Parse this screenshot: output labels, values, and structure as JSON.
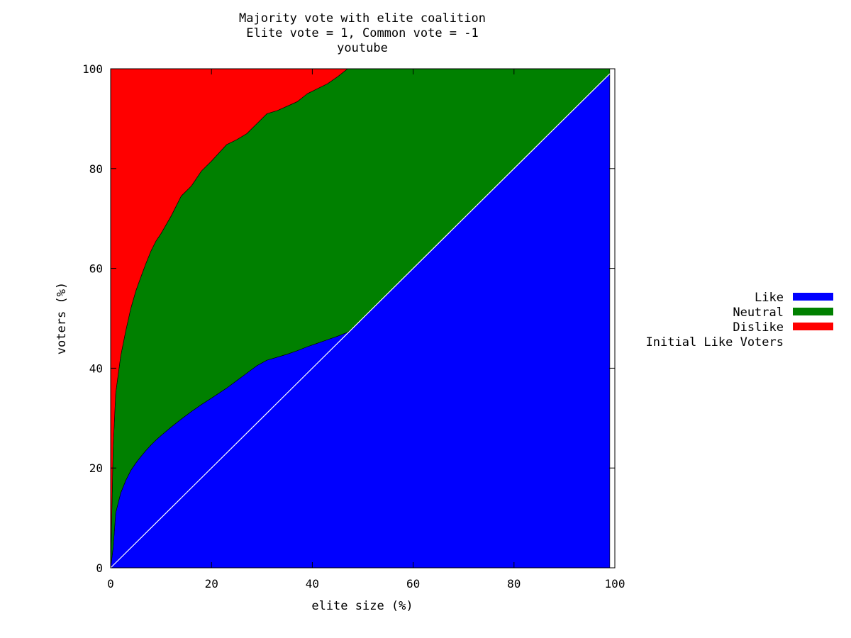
{
  "chart_data": {
    "type": "area",
    "title": "Majority vote with elite coalition",
    "subtitle": "Elite vote = 1, Common vote = -1",
    "subtitle2": "youtube",
    "xlabel": "elite size (%)",
    "ylabel": "voters (%)",
    "xlim": [
      0,
      100
    ],
    "ylim": [
      0,
      100
    ],
    "xticks": [
      "0",
      "20",
      "40",
      "60",
      "80",
      "100"
    ],
    "yticks": [
      "0",
      "20",
      "40",
      "60",
      "80",
      "100"
    ],
    "legend_position": "right",
    "stacked": true,
    "x": [
      0,
      0.5,
      1,
      2,
      3,
      4,
      5,
      6,
      7,
      8,
      9,
      10,
      12,
      14,
      16,
      18,
      20,
      23,
      25,
      27,
      29,
      31,
      33,
      35,
      37,
      39,
      41,
      43,
      45,
      47,
      49,
      55,
      60,
      70,
      80,
      90,
      99
    ],
    "series": [
      {
        "name": "Like",
        "color": "#0000ff",
        "values": [
          0,
          4,
          11,
          15,
          17.5,
          19.5,
          21,
          22.3,
          23.5,
          24.6,
          25.6,
          26.5,
          28.2,
          29.8,
          31.3,
          32.7,
          34,
          36,
          37.5,
          39,
          40.5,
          41.6,
          42.2,
          42.8,
          43.5,
          44.3,
          45,
          45.7,
          46.4,
          47.2,
          49,
          55,
          60,
          70,
          80,
          90,
          99
        ]
      },
      {
        "name": "Neutral",
        "color": "#008000",
        "values": [
          0,
          20,
          24,
          27.5,
          30,
          32.5,
          34.5,
          36,
          37.5,
          38.9,
          39.9,
          40.5,
          42.3,
          44.7,
          45.2,
          46.8,
          47.5,
          48.8,
          48.3,
          48,
          48.5,
          49.4,
          49.4,
          49.7,
          49.9,
          50.7,
          51,
          51.3,
          52,
          52.8,
          51,
          45,
          40,
          30,
          20,
          10,
          1
        ]
      },
      {
        "name": "Dislike",
        "color": "#ff0000",
        "values": [
          100,
          76,
          65,
          57.5,
          52.5,
          48,
          44.5,
          41.7,
          39,
          36.5,
          34.5,
          33,
          29.5,
          25.5,
          23.5,
          20.5,
          18.5,
          15.2,
          14.2,
          13,
          11,
          9,
          8.4,
          7.5,
          6.6,
          5,
          4,
          3,
          1.6,
          0,
          0,
          0,
          0,
          0,
          0,
          0,
          0
        ]
      }
    ],
    "reference_line": {
      "name": "Initial Like Voters",
      "color": "#ffffff",
      "points": [
        [
          0,
          0
        ],
        [
          99,
          99
        ]
      ]
    }
  }
}
